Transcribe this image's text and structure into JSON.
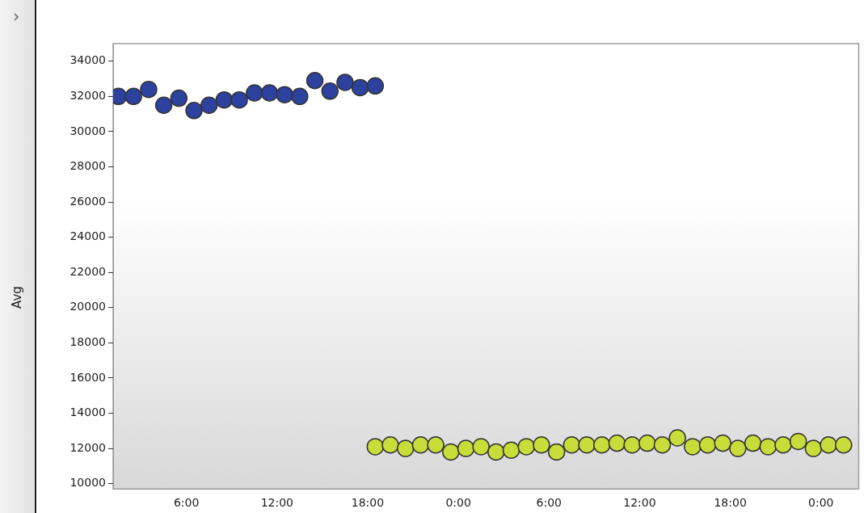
{
  "chart_data": {
    "type": "scatter",
    "ylabel": "Avg",
    "marker": "circle",
    "grid": false,
    "legend": false,
    "xlim": [
      "--01-01T01:09",
      "--01-03T02:30"
    ],
    "xticks": [
      {
        "value": "--01-01T06:00",
        "label": "6:00"
      },
      {
        "value": "--01-01T12:00",
        "label": "12:00"
      },
      {
        "value": "--01-01T18:00",
        "label": "18:00"
      },
      {
        "value": "--01-02T00:00",
        "label": "0:00"
      },
      {
        "value": "--01-02T06:00",
        "label": "6:00"
      },
      {
        "value": "--01-02T12:00",
        "label": "12:00"
      },
      {
        "value": "--01-02T18:00",
        "label": "18:00"
      },
      {
        "value": "--01-03T00:00",
        "label": "0:00"
      }
    ],
    "ylim": [
      9700,
      35000
    ],
    "yticks": [
      10000,
      12000,
      14000,
      16000,
      18000,
      20000,
      22000,
      24000,
      26000,
      28000,
      30000,
      32000,
      34000
    ],
    "series": [
      {
        "color": "#2d419f",
        "x": [
          "--01-01T01:30",
          "--01-01T02:30",
          "--01-01T03:30",
          "--01-01T04:30",
          "--01-01T05:30",
          "--01-01T06:30",
          "--01-01T07:30",
          "--01-01T08:30",
          "--01-01T09:30",
          "--01-01T10:30",
          "--01-01T11:30",
          "--01-01T12:30",
          "--01-01T13:30",
          "--01-01T14:30",
          "--01-01T15:30",
          "--01-01T16:30",
          "--01-01T17:30",
          "--01-01T18:30"
        ],
        "values": [
          32000,
          32000,
          32400,
          31500,
          31900,
          31200,
          31500,
          31800,
          31800,
          32200,
          32200,
          32100,
          32000,
          32900,
          32300,
          32800,
          32500,
          32600
        ]
      },
      {
        "color": "#c9dd3a",
        "x": [
          "--01-01T18:30",
          "--01-01T19:30",
          "--01-01T20:30",
          "--01-01T21:30",
          "--01-01T22:30",
          "--01-01T23:30",
          "--01-02T00:30",
          "--01-02T01:30",
          "--01-02T02:30",
          "--01-02T03:30",
          "--01-02T04:30",
          "--01-02T05:30",
          "--01-02T06:30",
          "--01-02T07:30",
          "--01-02T08:30",
          "--01-02T09:30",
          "--01-02T10:30",
          "--01-02T11:30",
          "--01-02T12:30",
          "--01-02T13:30",
          "--01-02T14:30",
          "--01-02T15:30",
          "--01-02T16:30",
          "--01-02T17:30",
          "--01-02T18:30",
          "--01-02T19:30",
          "--01-02T20:30",
          "--01-02T21:30",
          "--01-02T22:30",
          "--01-02T23:30",
          "--01-03T00:30",
          "--01-03T01:30"
        ],
        "values": [
          12100,
          12200,
          12000,
          12200,
          12200,
          11800,
          12000,
          12100,
          11800,
          11900,
          12100,
          12200,
          11800,
          12200,
          12200,
          12200,
          12300,
          12200,
          12300,
          12200,
          12600,
          12100,
          12200,
          12300,
          12000,
          12300,
          12100,
          12200,
          12400,
          12000,
          12200,
          12200
        ]
      }
    ]
  }
}
